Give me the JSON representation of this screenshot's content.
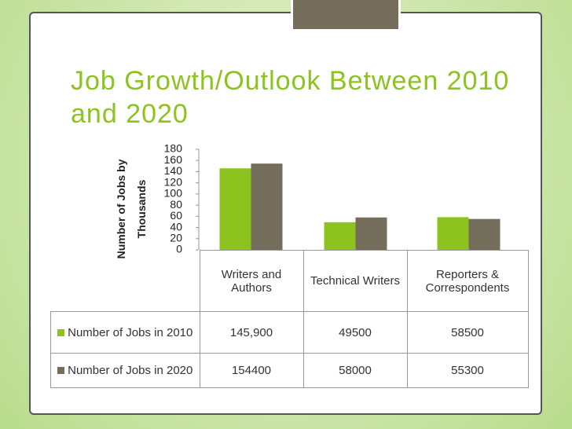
{
  "chart_data": {
    "type": "bar",
    "title": "Job Growth/Outlook Between 2010 and 2020",
    "ylabel": "Number of Jobs by Thousands",
    "categories": [
      "Writers and Authors",
      "Technical Writers",
      "Reporters & Correspondents"
    ],
    "series": [
      {
        "name": "Number of Jobs in 2010",
        "color": "#8cc31f",
        "values": [
          145.9,
          49.5,
          58.5
        ],
        "value_labels": [
          "145,900",
          "49500",
          "58500"
        ]
      },
      {
        "name": "Number of Jobs in 2020",
        "color": "#756d5c",
        "values": [
          154.4,
          58,
          55.3
        ],
        "value_labels": [
          "154400",
          "58000",
          "55300"
        ]
      }
    ],
    "ylim": [
      0,
      180
    ],
    "yticks": [
      0,
      20,
      40,
      60,
      80,
      100,
      120,
      140,
      160,
      180
    ],
    "grid": false
  }
}
